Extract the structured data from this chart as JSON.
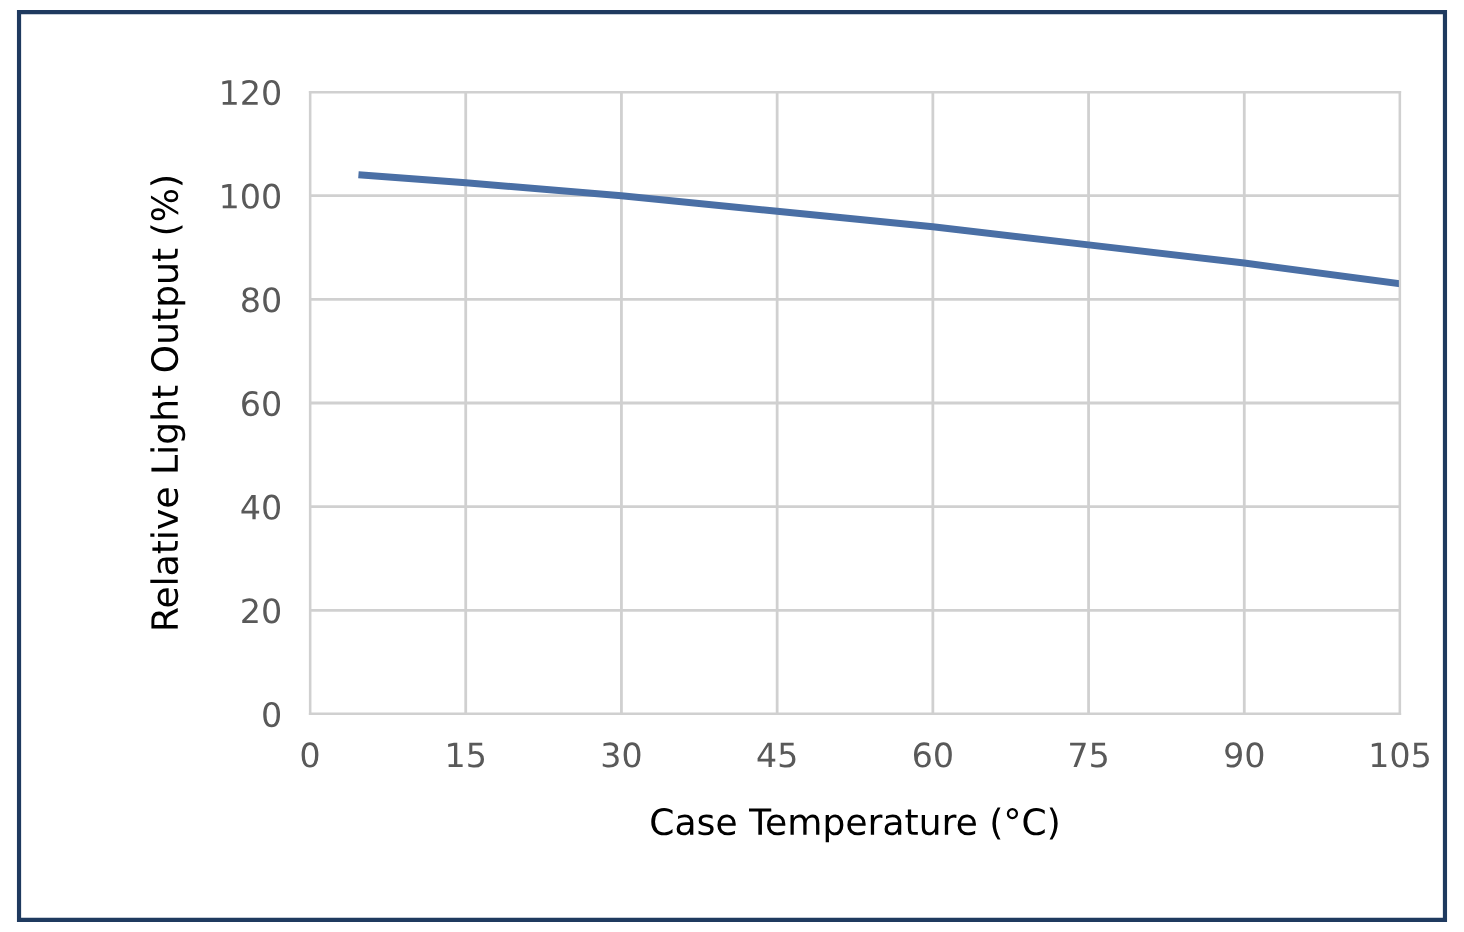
{
  "chart_data": {
    "type": "line",
    "xlabel": "Case Temperature (°C)",
    "ylabel": "Relative Light Output (%)",
    "series": [
      {
        "color": "#4a6fa5",
        "x": [
          5,
          15,
          30,
          45,
          60,
          75,
          90,
          105
        ],
        "values": [
          104,
          102.5,
          100,
          97,
          94,
          90.5,
          87,
          83
        ]
      }
    ],
    "xlim": [
      0,
      105
    ],
    "xticks": [
      0,
      15,
      30,
      45,
      60,
      75,
      90,
      105
    ],
    "ylim": [
      0,
      120
    ],
    "yticks": [
      0,
      20,
      40,
      60,
      80,
      100,
      120
    ],
    "grid": true,
    "legend": false,
    "marker": "none",
    "line_style": "solid"
  }
}
